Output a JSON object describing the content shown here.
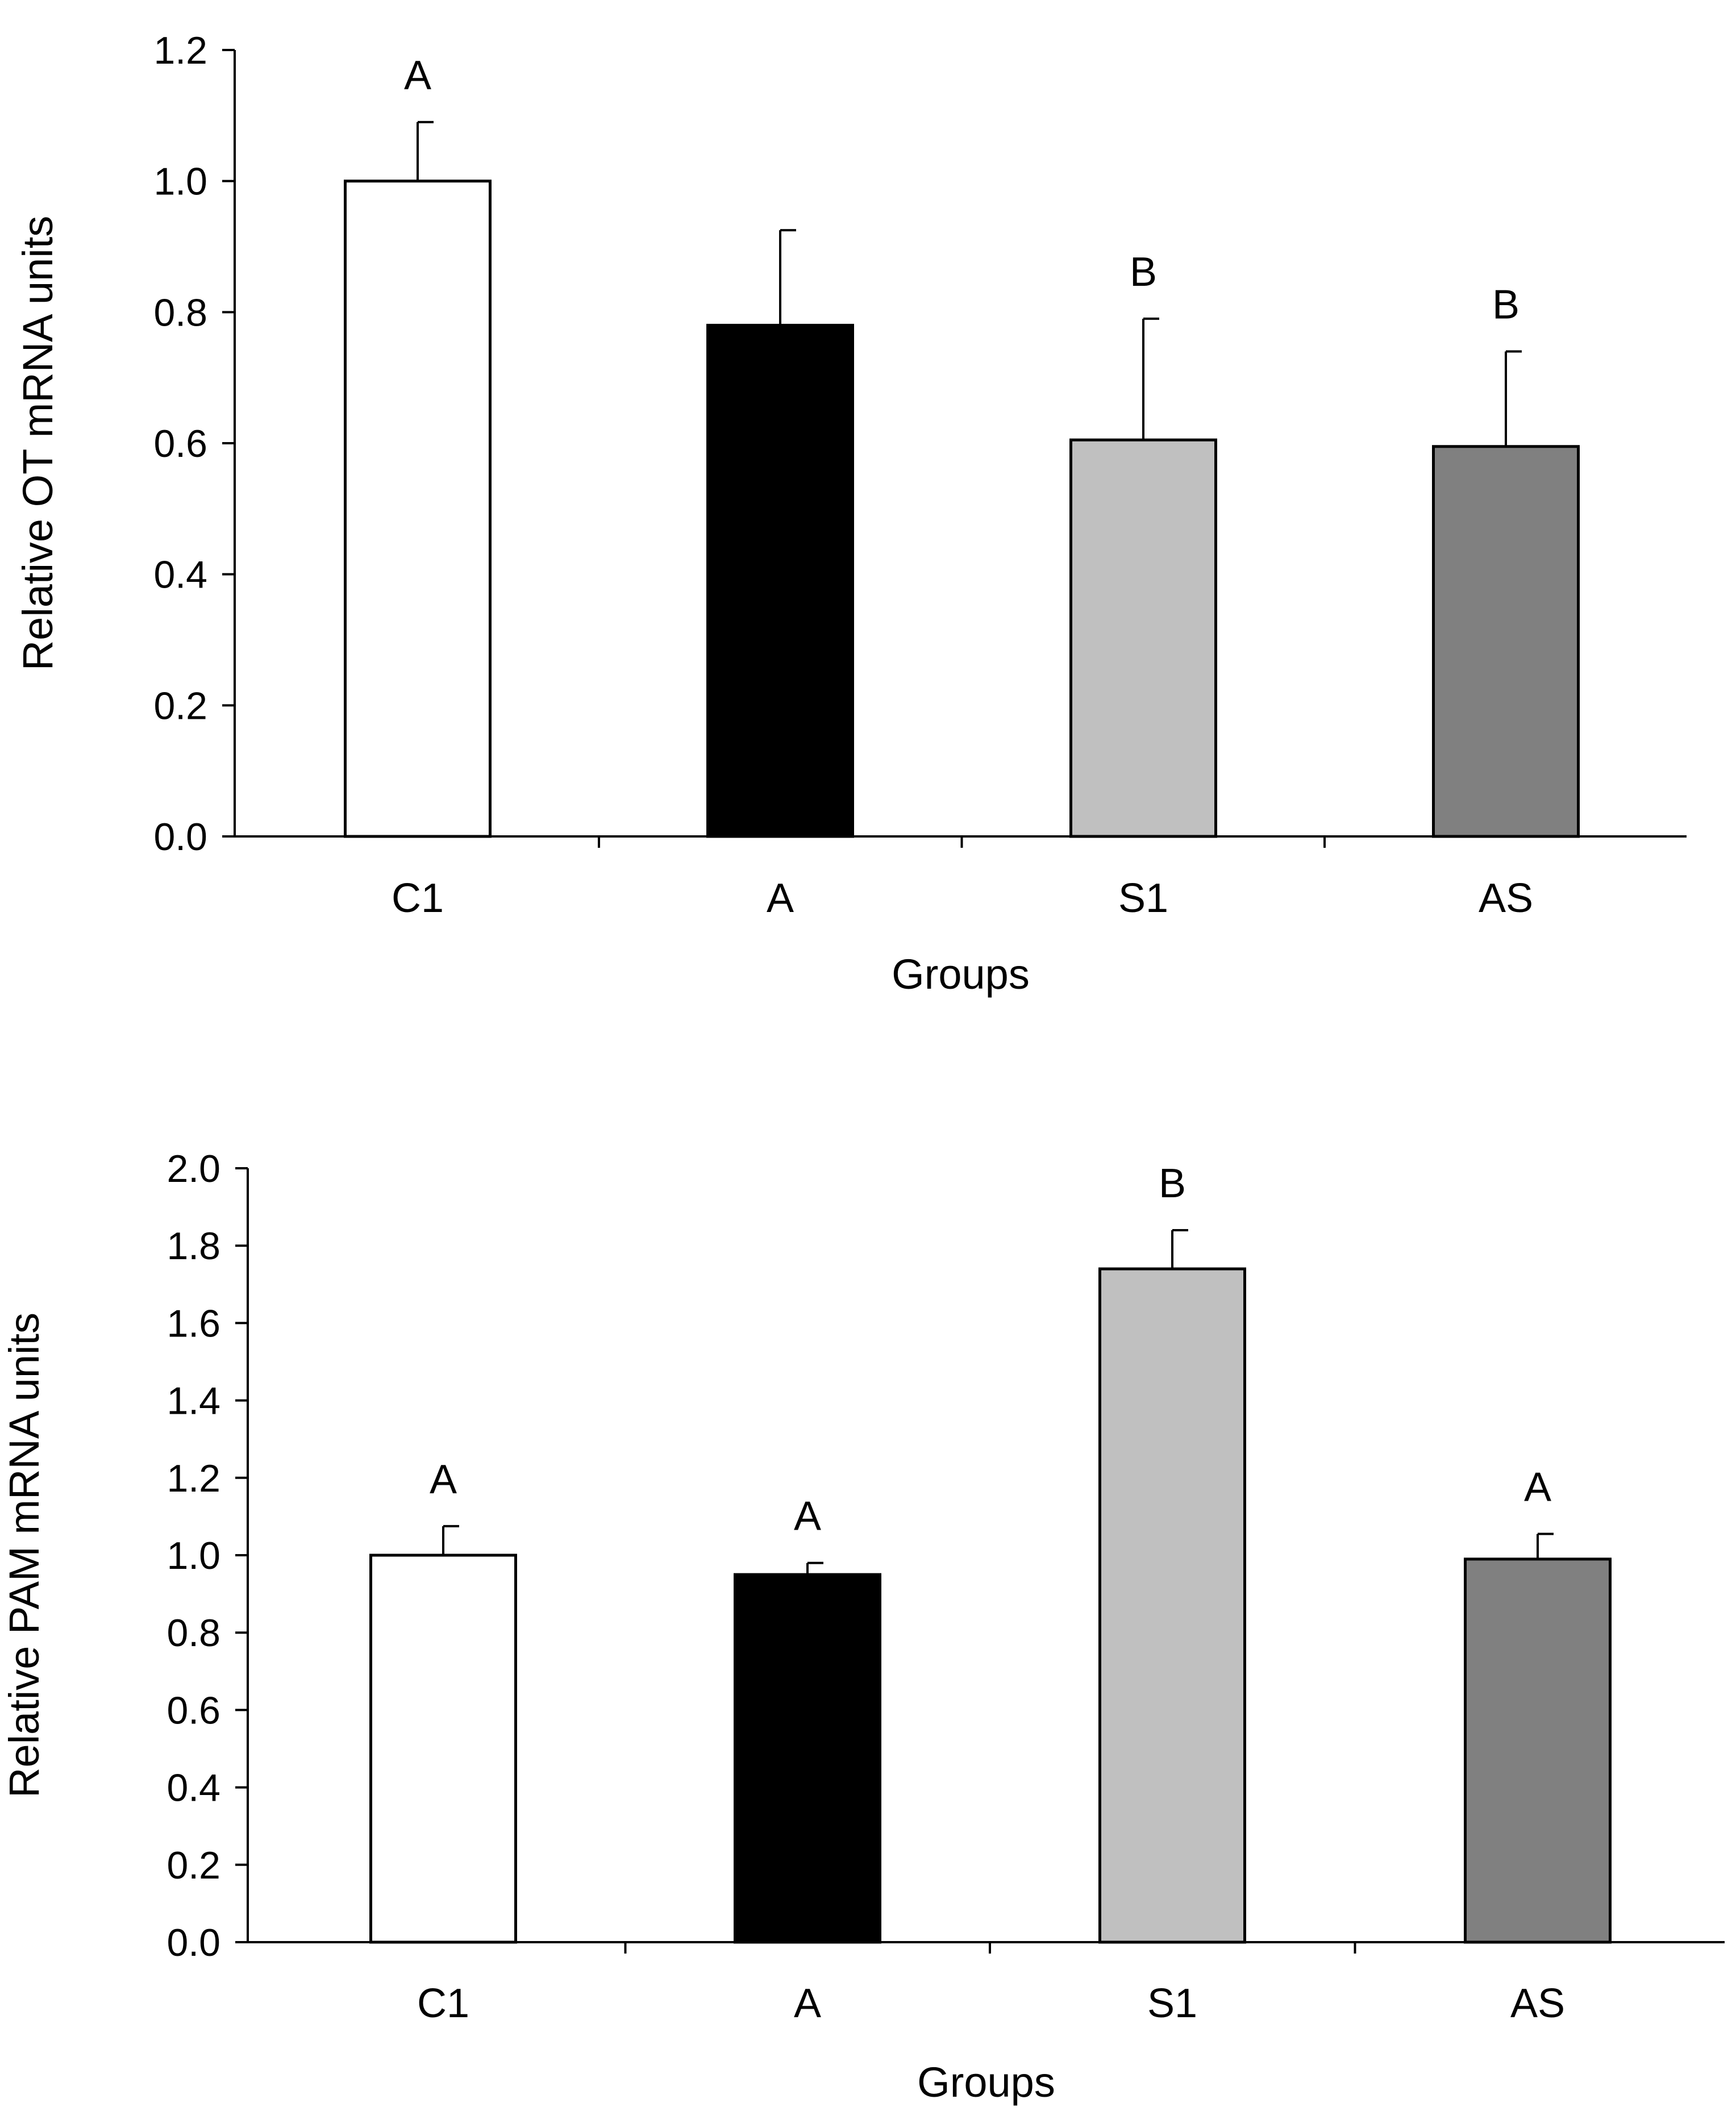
{
  "chart_data": [
    {
      "type": "bar",
      "title": "",
      "xlabel": "Groups",
      "ylabel": "Relative OT mRNA units",
      "ylim": [
        0,
        1.2
      ],
      "yticks": [
        "0.0",
        "0.2",
        "0.4",
        "0.6",
        "0.8",
        "1.0",
        "1.2"
      ],
      "categories": [
        "C1",
        "A",
        "S1",
        "AS"
      ],
      "values": [
        1.0,
        0.78,
        0.605,
        0.595
      ],
      "errors": [
        0.09,
        0.145,
        0.185,
        0.145
      ],
      "significance": [
        "A",
        "",
        "B",
        "B"
      ],
      "colors": [
        "#ffffff",
        "#000000",
        "#c0c0c0",
        "#808080"
      ],
      "grid": false,
      "legend": "none"
    },
    {
      "type": "bar",
      "title": "",
      "xlabel": "Groups",
      "ylabel": "Relative PAM mRNA units",
      "ylim": [
        0,
        2.0
      ],
      "yticks": [
        "0.0",
        "0.2",
        "0.4",
        "0.6",
        "0.8",
        "1.0",
        "1.2",
        "1.4",
        "1.6",
        "1.8",
        "2.0"
      ],
      "categories": [
        "C1",
        "A",
        "S1",
        "AS"
      ],
      "values": [
        1.0,
        0.95,
        1.74,
        0.99
      ],
      "errors": [
        0.075,
        0.03,
        0.1,
        0.065
      ],
      "significance": [
        "A",
        "A",
        "B",
        "A"
      ],
      "colors": [
        "#ffffff",
        "#000000",
        "#c0c0c0",
        "#808080"
      ],
      "grid": false,
      "legend": "none"
    }
  ]
}
